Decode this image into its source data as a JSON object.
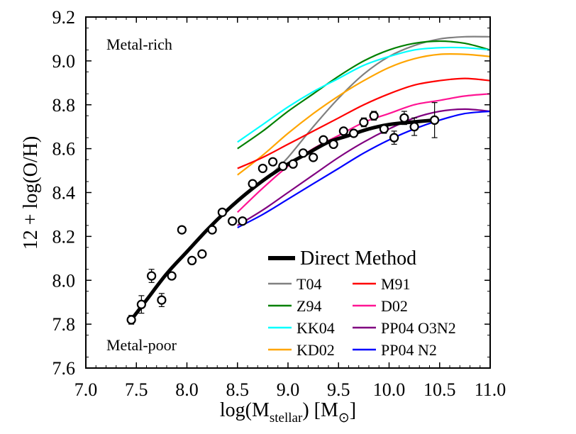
{
  "chart_data": {
    "type": "line",
    "xlabel": "log(M",
    "xlabel_sub": "stellar",
    "xlabel_tail": ") [M",
    "xlabel_sun": "⊙",
    "xlabel_end": "]",
    "ylabel": "12 + log(O/H)",
    "xlim": [
      7.0,
      11.0
    ],
    "ylim": [
      7.6,
      9.2
    ],
    "x_ticks": [
      "7.0",
      "7.5",
      "8.0",
      "8.5",
      "9.0",
      "9.5",
      "10.0",
      "10.5",
      "11.0"
    ],
    "y_ticks": [
      "7.6",
      "7.8",
      "8.0",
      "8.2",
      "8.4",
      "8.6",
      "8.8",
      "9.0",
      "9.2"
    ],
    "annotations": {
      "top": "Metal-rich",
      "bottom": "Metal-poor"
    },
    "legend": {
      "position": "lower-right",
      "main_label": "Direct Method"
    },
    "series": [
      {
        "name": "Direct Method",
        "color": "#000000",
        "x": [
          7.45,
          7.6,
          7.8,
          8.0,
          8.2,
          8.4,
          8.6,
          8.8,
          9.0,
          9.2,
          9.4,
          9.6,
          9.8,
          10.0,
          10.2,
          10.45
        ],
        "y": [
          7.82,
          7.91,
          8.03,
          8.13,
          8.23,
          8.32,
          8.4,
          8.47,
          8.53,
          8.58,
          8.63,
          8.66,
          8.69,
          8.71,
          8.72,
          8.73
        ]
      },
      {
        "name": "T04",
        "color": "#808080",
        "x": [
          8.85,
          9.0,
          9.25,
          9.5,
          9.75,
          10.0,
          10.25,
          10.5,
          10.75,
          11.0
        ],
        "y": [
          8.49,
          8.56,
          8.7,
          8.83,
          8.94,
          9.02,
          9.07,
          9.1,
          9.11,
          9.11
        ]
      },
      {
        "name": "Z94",
        "color": "#008000",
        "x": [
          8.5,
          8.75,
          9.0,
          9.25,
          9.5,
          9.75,
          10.0,
          10.25,
          10.5,
          10.75,
          11.0
        ],
        "y": [
          8.6,
          8.68,
          8.77,
          8.85,
          8.93,
          9.0,
          9.05,
          9.08,
          9.09,
          9.08,
          9.05
        ]
      },
      {
        "name": "KK04",
        "color": "#00ffff",
        "x": [
          8.5,
          8.75,
          9.0,
          9.25,
          9.5,
          9.75,
          10.0,
          10.25,
          10.5,
          10.75,
          11.0
        ],
        "y": [
          8.63,
          8.71,
          8.79,
          8.86,
          8.92,
          8.98,
          9.02,
          9.05,
          9.06,
          9.06,
          9.05
        ]
      },
      {
        "name": "KD02",
        "color": "#ffa500",
        "x": [
          8.5,
          8.75,
          9.0,
          9.25,
          9.5,
          9.75,
          10.0,
          10.25,
          10.5,
          10.75,
          11.0
        ],
        "y": [
          8.48,
          8.57,
          8.67,
          8.76,
          8.84,
          8.91,
          8.97,
          9.01,
          9.03,
          9.03,
          9.02
        ]
      },
      {
        "name": "M91",
        "color": "#ff0000",
        "x": [
          8.5,
          8.75,
          9.0,
          9.25,
          9.5,
          9.75,
          10.0,
          10.25,
          10.5,
          10.75,
          11.0
        ],
        "y": [
          8.51,
          8.56,
          8.62,
          8.68,
          8.74,
          8.8,
          8.85,
          8.89,
          8.91,
          8.92,
          8.91
        ]
      },
      {
        "name": "D02",
        "color": "#ff1493",
        "x": [
          8.5,
          8.75,
          9.0,
          9.25,
          9.5,
          9.75,
          10.0,
          10.25,
          10.5,
          10.75,
          11.0
        ],
        "y": [
          8.31,
          8.42,
          8.52,
          8.6,
          8.66,
          8.72,
          8.76,
          8.8,
          8.82,
          8.84,
          8.85
        ]
      },
      {
        "name": "PP04 O3N2",
        "color": "#800080",
        "x": [
          8.5,
          8.75,
          9.0,
          9.25,
          9.5,
          9.75,
          10.0,
          10.25,
          10.5,
          10.75,
          11.0
        ],
        "y": [
          8.25,
          8.32,
          8.4,
          8.48,
          8.56,
          8.63,
          8.69,
          8.74,
          8.77,
          8.78,
          8.77
        ]
      },
      {
        "name": "PP04 N2",
        "color": "#0000ff",
        "x": [
          8.5,
          8.75,
          9.0,
          9.25,
          9.5,
          9.75,
          10.0,
          10.25,
          10.5,
          10.75,
          11.0
        ],
        "y": [
          8.24,
          8.3,
          8.37,
          8.44,
          8.51,
          8.58,
          8.64,
          8.69,
          8.73,
          8.76,
          8.77
        ]
      }
    ],
    "data_points": {
      "x": [
        7.45,
        7.55,
        7.65,
        7.75,
        7.85,
        7.95,
        8.05,
        8.15,
        8.25,
        8.35,
        8.45,
        8.55,
        8.65,
        8.75,
        8.85,
        8.95,
        9.05,
        9.15,
        9.25,
        9.35,
        9.45,
        9.55,
        9.65,
        9.75,
        9.85,
        9.95,
        10.05,
        10.15,
        10.25,
        10.45
      ],
      "y": [
        7.82,
        7.89,
        8.02,
        7.91,
        8.02,
        8.23,
        8.09,
        8.12,
        8.23,
        8.31,
        8.27,
        8.27,
        8.44,
        8.51,
        8.54,
        8.52,
        8.53,
        8.58,
        8.56,
        8.64,
        8.62,
        8.68,
        8.67,
        8.72,
        8.75,
        8.69,
        8.65,
        8.74,
        8.7,
        8.73
      ],
      "err": [
        0.02,
        0.04,
        0.03,
        0.03,
        0,
        0,
        0,
        0,
        0,
        0,
        0,
        0,
        0,
        0,
        0,
        0,
        0,
        0,
        0,
        0,
        0,
        0,
        0,
        0.02,
        0.02,
        0.02,
        0.03,
        0.03,
        0.04,
        0.08
      ]
    }
  }
}
